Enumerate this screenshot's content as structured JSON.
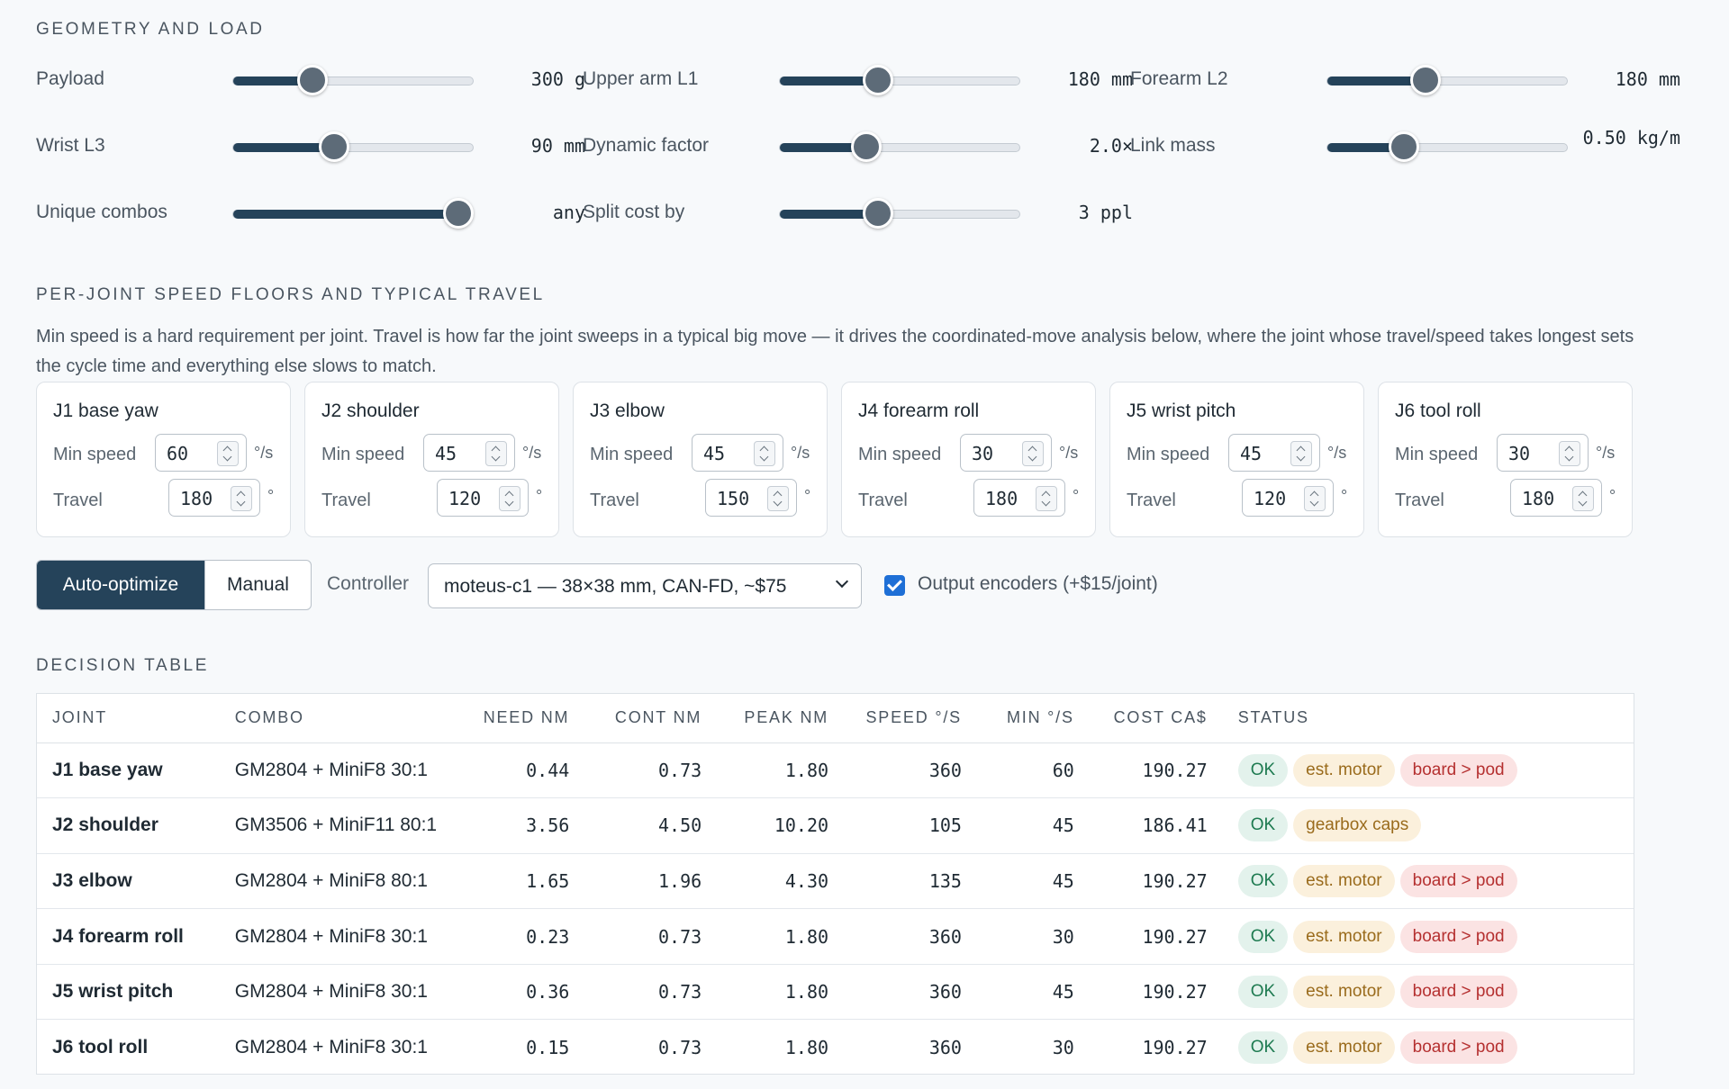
{
  "geometry": {
    "title": "GEOMETRY AND LOAD",
    "sliders": [
      {
        "label": "Payload",
        "value": "300 g",
        "fraction": 0.33
      },
      {
        "label": "Upper arm L1",
        "value": "180 mm",
        "fraction": 0.41
      },
      {
        "label": "Forearm L2",
        "value": "180 mm",
        "fraction": 0.41
      },
      {
        "label": "Wrist L3",
        "value": "90 mm",
        "fraction": 0.42
      },
      {
        "label": "Dynamic factor",
        "value": "2.0×",
        "fraction": 0.36
      },
      {
        "label": "Link mass",
        "value": "0.50 kg/m",
        "fraction": 0.32
      },
      {
        "label": "Unique combos",
        "value": "any",
        "fraction": 0.94
      },
      {
        "label": "Split cost by",
        "value": "3 ppl",
        "fraction": 0.41
      }
    ]
  },
  "speed": {
    "title": "PER-JOINT SPEED FLOORS AND TYPICAL TRAVEL",
    "description": "Min speed is a hard requirement per joint. Travel is how far the joint sweeps in a typical big move — it drives the coordinated-move analysis below, where the joint whose travel/speed takes longest sets the cycle time and everything else slows to match.",
    "min_speed_label": "Min speed",
    "travel_label": "Travel",
    "speed_unit": "°/s",
    "travel_unit": "°",
    "joints": [
      {
        "name": "J1 base yaw",
        "min_speed": "60",
        "travel": "180"
      },
      {
        "name": "J2 shoulder",
        "min_speed": "45",
        "travel": "120"
      },
      {
        "name": "J3 elbow",
        "min_speed": "45",
        "travel": "150"
      },
      {
        "name": "J4 forearm roll",
        "min_speed": "30",
        "travel": "180"
      },
      {
        "name": "J5 wrist pitch",
        "min_speed": "45",
        "travel": "120"
      },
      {
        "name": "J6 tool roll",
        "min_speed": "30",
        "travel": "180"
      }
    ]
  },
  "controls": {
    "mode_auto": "Auto-optimize",
    "mode_manual": "Manual",
    "active_mode": "Auto-optimize",
    "controller_label": "Controller",
    "controller_value": "moteus-c1 — 38×38 mm, CAN-FD, ~$75",
    "encoders_checked": true,
    "encoders_label": "Output encoders (+$15/joint)"
  },
  "decision": {
    "title": "DECISION TABLE",
    "headers": [
      "JOINT",
      "COMBO",
      "NEED NM",
      "CONT NM",
      "PEAK NM",
      "SPEED °/S",
      "MIN °/S",
      "COST CA$",
      "STATUS"
    ],
    "rows": [
      {
        "joint": "J1 base yaw",
        "combo": "GM2804 + MiniF8 30:1",
        "need": "0.44",
        "cont": "0.73",
        "peak": "1.80",
        "speed": "360",
        "min": "60",
        "cost": "190.27",
        "badges": [
          {
            "text": "OK",
            "kind": "ok"
          },
          {
            "text": "est. motor",
            "kind": "est"
          },
          {
            "text": "board > pod",
            "kind": "board"
          }
        ]
      },
      {
        "joint": "J2 shoulder",
        "combo": "GM3506 + MiniF11 80:1",
        "need": "3.56",
        "cont": "4.50",
        "peak": "10.20",
        "speed": "105",
        "min": "45",
        "cost": "186.41",
        "badges": [
          {
            "text": "OK",
            "kind": "ok"
          },
          {
            "text": "gearbox caps",
            "kind": "gear"
          }
        ]
      },
      {
        "joint": "J3 elbow",
        "combo": "GM2804 + MiniF8 80:1",
        "need": "1.65",
        "cont": "1.96",
        "peak": "4.30",
        "speed": "135",
        "min": "45",
        "cost": "190.27",
        "badges": [
          {
            "text": "OK",
            "kind": "ok"
          },
          {
            "text": "est. motor",
            "kind": "est"
          },
          {
            "text": "board > pod",
            "kind": "board"
          }
        ]
      },
      {
        "joint": "J4 forearm roll",
        "combo": "GM2804 + MiniF8 30:1",
        "need": "0.23",
        "cont": "0.73",
        "peak": "1.80",
        "speed": "360",
        "min": "30",
        "cost": "190.27",
        "badges": [
          {
            "text": "OK",
            "kind": "ok"
          },
          {
            "text": "est. motor",
            "kind": "est"
          },
          {
            "text": "board > pod",
            "kind": "board"
          }
        ]
      },
      {
        "joint": "J5 wrist pitch",
        "combo": "GM2804 + MiniF8 30:1",
        "need": "0.36",
        "cont": "0.73",
        "peak": "1.80",
        "speed": "360",
        "min": "45",
        "cost": "190.27",
        "badges": [
          {
            "text": "OK",
            "kind": "ok"
          },
          {
            "text": "est. motor",
            "kind": "est"
          },
          {
            "text": "board > pod",
            "kind": "board"
          }
        ]
      },
      {
        "joint": "J6 tool roll",
        "combo": "GM2804 + MiniF8 30:1",
        "need": "0.15",
        "cont": "0.73",
        "peak": "1.80",
        "speed": "360",
        "min": "30",
        "cost": "190.27",
        "badges": [
          {
            "text": "OK",
            "kind": "ok"
          },
          {
            "text": "est. motor",
            "kind": "est"
          },
          {
            "text": "board > pod",
            "kind": "board"
          }
        ]
      }
    ]
  },
  "colors": {
    "accent": "#25435a",
    "ok": "#1d7a50",
    "warn": "#9a6b1c",
    "danger": "#b53030",
    "checkbox": "#1e6fd6"
  }
}
